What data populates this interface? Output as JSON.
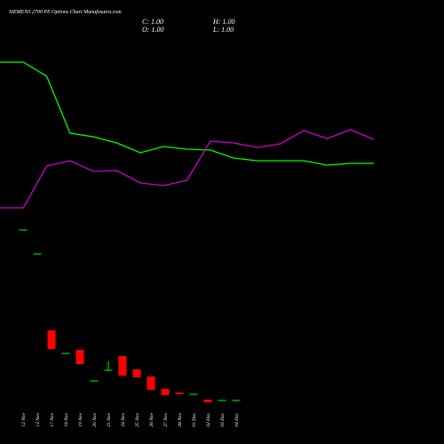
{
  "chart_data": [
    {
      "type": "candlestick",
      "title": "SIEMENS 2700 PE Options Chart Munafasutra.com",
      "ohlc_labels": {
        "close": "C: 1.00",
        "high": "H: 1.00",
        "open": "O: 1.00",
        "low": "L: 1.00"
      },
      "categories": [
        "12 Nov",
        "13 Nov",
        "17 Nov",
        "18 Nov",
        "19 Nov",
        "20 Nov",
        "21 Nov",
        "24 Nov",
        "25 Nov",
        "26 Nov",
        "27 Nov",
        "28 Nov",
        "01 Dec",
        "02 Dec",
        "03 Dec",
        "04 Dec"
      ],
      "open": [
        100.5,
        87,
        44,
        31,
        33,
        15.5,
        21.5,
        29.5,
        22,
        18,
        11,
        9,
        8,
        5,
        4.5,
        4.5
      ],
      "close": [
        100.5,
        87,
        33.5,
        31,
        25,
        15.5,
        21.5,
        18.5,
        17.5,
        10.5,
        7.5,
        8,
        8,
        3.5,
        4.5,
        4.5
      ],
      "high": [
        100.5,
        87,
        44,
        31,
        33,
        15.5,
        26.5,
        29.5,
        22,
        18,
        11,
        9,
        8,
        5,
        4.5,
        4.5
      ],
      "low": [
        100.5,
        87,
        33.5,
        31,
        25,
        15.5,
        21.5,
        18.5,
        17.5,
        10.5,
        7.5,
        8,
        8,
        3.5,
        4.5,
        4.5
      ],
      "up_color": "#00ff00",
      "down_color": "#ff0000",
      "ylim": [
        0,
        230
      ]
    },
    {
      "type": "line",
      "categories": [
        null,
        null,
        null,
        null,
        null,
        null,
        null,
        null,
        null,
        null,
        null,
        null,
        null,
        null,
        null,
        null,
        null
      ],
      "series": [
        {
          "color": "#00ff00",
          "values": [
            180,
            180,
            164,
            100,
            96,
            89,
            78,
            85,
            82,
            81,
            72,
            69,
            69,
            69,
            64,
            66,
            66
          ]
        },
        {
          "color": "#cc00cc",
          "values": [
            16,
            16,
            63,
            69,
            57,
            58,
            44,
            41,
            47,
            91,
            89,
            84,
            88,
            103,
            94,
            104,
            93
          ]
        }
      ],
      "ylim": [
        0,
        250
      ]
    }
  ]
}
